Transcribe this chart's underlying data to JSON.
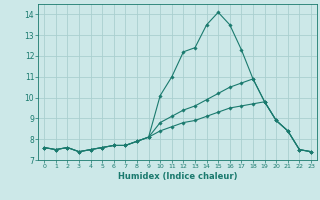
{
  "xlabel": "Humidex (Indice chaleur)",
  "ylabel": "",
  "background_color": "#cce8e8",
  "grid_color": "#aacfcf",
  "line_color": "#1a7a6e",
  "xlim": [
    -0.5,
    23.5
  ],
  "ylim": [
    7,
    14.5
  ],
  "xticks": [
    0,
    1,
    2,
    3,
    4,
    5,
    6,
    7,
    8,
    9,
    10,
    11,
    12,
    13,
    14,
    15,
    16,
    17,
    18,
    19,
    20,
    21,
    22,
    23
  ],
  "yticks": [
    7,
    8,
    9,
    10,
    11,
    12,
    13,
    14
  ],
  "x": [
    0,
    1,
    2,
    3,
    4,
    5,
    6,
    7,
    8,
    9,
    10,
    11,
    12,
    13,
    14,
    15,
    16,
    17,
    18,
    19,
    20,
    21,
    22,
    23
  ],
  "y_main": [
    7.6,
    7.5,
    7.6,
    7.4,
    7.5,
    7.6,
    7.7,
    7.7,
    7.9,
    8.1,
    10.1,
    11.0,
    12.2,
    12.4,
    13.5,
    14.1,
    13.5,
    12.3,
    10.9,
    9.8,
    8.9,
    8.4,
    7.5,
    7.4
  ],
  "y_upper": [
    7.6,
    7.5,
    7.6,
    7.4,
    7.5,
    7.6,
    7.7,
    7.7,
    7.9,
    8.1,
    8.8,
    9.1,
    9.4,
    9.6,
    9.9,
    10.2,
    10.5,
    10.7,
    10.9,
    9.8,
    8.9,
    8.4,
    7.5,
    7.4
  ],
  "y_lower": [
    7.6,
    7.5,
    7.6,
    7.4,
    7.5,
    7.6,
    7.7,
    7.7,
    7.9,
    8.1,
    8.4,
    8.6,
    8.8,
    8.9,
    9.1,
    9.3,
    9.5,
    9.6,
    9.7,
    9.8,
    8.9,
    8.4,
    7.5,
    7.4
  ]
}
